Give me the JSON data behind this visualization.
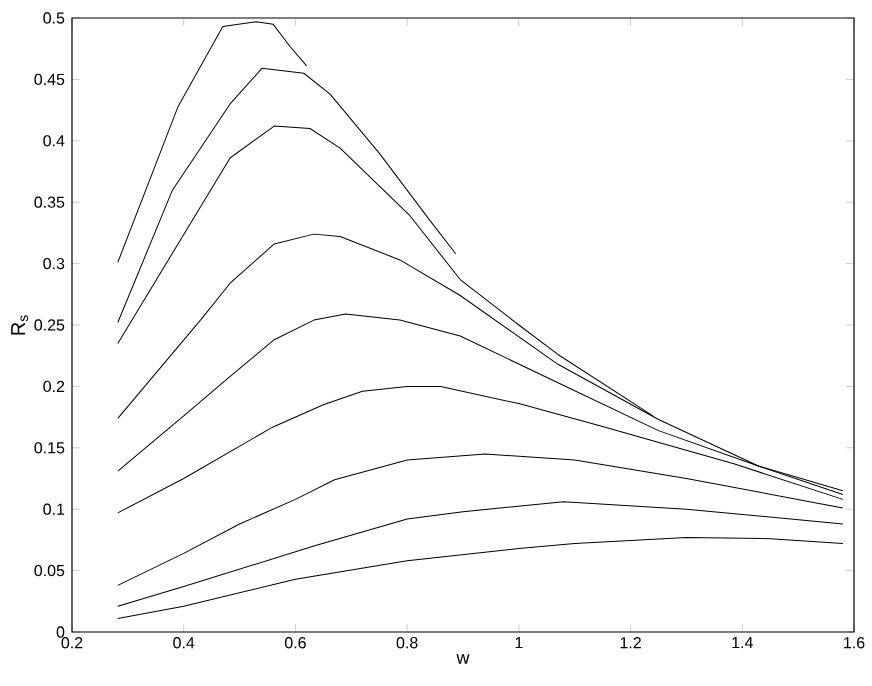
{
  "chart_data": {
    "type": "line",
    "xlabel": "w",
    "ylabel": "R$_{s}$",
    "xlim": [
      0.2,
      1.6
    ],
    "ylim": [
      0,
      0.5
    ],
    "xticks": [
      0.2,
      0.4,
      0.6,
      0.8,
      1,
      1.2,
      1.4,
      1.6
    ],
    "yticks": [
      0,
      0.05,
      0.1,
      0.15,
      0.2,
      0.25,
      0.3,
      0.35,
      0.4,
      0.45,
      0.5
    ],
    "series": [
      {
        "color": "#000000",
        "x": [
          0.282,
          0.39,
          0.47,
          0.53,
          0.56,
          0.59,
          0.62
        ],
        "values": [
          0.301,
          0.428,
          0.493,
          0.497,
          0.495,
          0.477,
          0.461
        ]
      },
      {
        "color": "#000000",
        "x": [
          0.282,
          0.38,
          0.483,
          0.54,
          0.615,
          0.662,
          0.75,
          0.841,
          0.887
        ],
        "values": [
          0.252,
          0.36,
          0.43,
          0.459,
          0.455,
          0.438,
          0.39,
          0.335,
          0.308
        ]
      },
      {
        "color": "#000000",
        "x": [
          0.282,
          0.483,
          0.562,
          0.626,
          0.68,
          0.805,
          0.895,
          1.0,
          1.07,
          1.24
        ],
        "values": [
          0.235,
          0.386,
          0.412,
          0.41,
          0.394,
          0.339,
          0.287,
          0.25,
          0.226,
          0.176
        ]
      },
      {
        "color": "#000000",
        "x": [
          0.282,
          0.43,
          0.483,
          0.562,
          0.633,
          0.68,
          0.787,
          0.895,
          1.07,
          1.25,
          1.43,
          1.58
        ],
        "values": [
          0.174,
          0.254,
          0.284,
          0.316,
          0.324,
          0.322,
          0.303,
          0.274,
          0.218,
          0.173,
          0.135,
          0.115
        ]
      },
      {
        "color": "#000000",
        "x": [
          0.282,
          0.4,
          0.48,
          0.562,
          0.633,
          0.69,
          0.787,
          0.895,
          1.07,
          1.25,
          1.43,
          1.58
        ],
        "values": [
          0.131,
          0.176,
          0.207,
          0.238,
          0.254,
          0.259,
          0.254,
          0.241,
          0.203,
          0.164,
          0.135,
          0.112
        ]
      },
      {
        "color": "#000000",
        "x": [
          0.282,
          0.4,
          0.56,
          0.65,
          0.72,
          0.8,
          0.86,
          1.0,
          1.145,
          1.385,
          1.58
        ],
        "values": [
          0.097,
          0.125,
          0.167,
          0.185,
          0.196,
          0.2,
          0.2,
          0.186,
          0.168,
          0.137,
          0.108
        ]
      },
      {
        "color": "#000000",
        "x": [
          0.282,
          0.4,
          0.5,
          0.6,
          0.67,
          0.8,
          0.94,
          1.1,
          1.3,
          1.58
        ],
        "values": [
          0.038,
          0.064,
          0.088,
          0.108,
          0.124,
          0.14,
          0.145,
          0.14,
          0.125,
          0.101
        ]
      },
      {
        "color": "#000000",
        "x": [
          0.282,
          0.4,
          0.633,
          0.8,
          0.9,
          1.08,
          1.3,
          1.58
        ],
        "values": [
          0.021,
          0.037,
          0.07,
          0.092,
          0.098,
          0.106,
          0.1,
          0.088
        ]
      },
      {
        "color": "#000000",
        "x": [
          0.282,
          0.4,
          0.6,
          0.8,
          1.0,
          1.1,
          1.3,
          1.45,
          1.58
        ],
        "values": [
          0.011,
          0.021,
          0.043,
          0.058,
          0.068,
          0.072,
          0.077,
          0.076,
          0.072
        ]
      }
    ]
  }
}
